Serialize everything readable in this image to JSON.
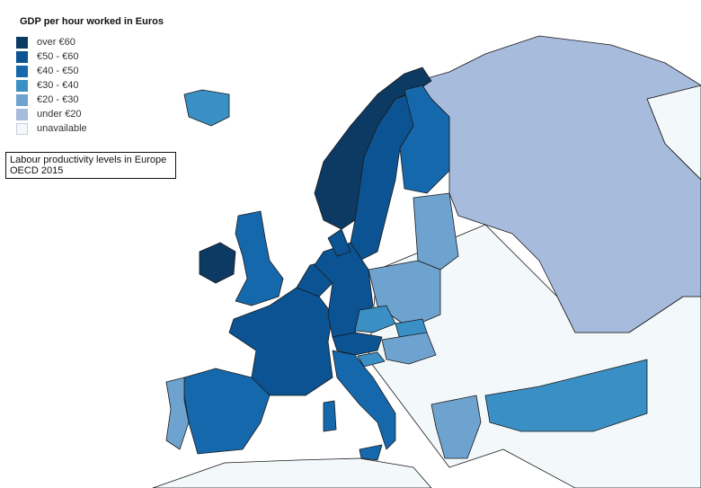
{
  "legend": {
    "title": "GDP per hour worked in Euros",
    "items": [
      {
        "label": "over €60",
        "color": "#0d3a63"
      },
      {
        "label": "€50 - €60",
        "color": "#0b5392"
      },
      {
        "label": "€40 - €50",
        "color": "#1668ad"
      },
      {
        "label": "€30 - €40",
        "color": "#3a8fc4"
      },
      {
        "label": "€20 - €30",
        "color": "#6fa3cf"
      },
      {
        "label": "under €20",
        "color": "#a7bbdc"
      },
      {
        "label": "unavailable",
        "color": "#f3f8fb"
      }
    ]
  },
  "caption": {
    "line1": "Labour productivity levels in Europe",
    "line2": "OECD 2015"
  },
  "regions": [
    {
      "name": "norway",
      "category": 0
    },
    {
      "name": "ireland",
      "category": 0
    },
    {
      "name": "sweden",
      "category": 1
    },
    {
      "name": "denmark",
      "category": 1
    },
    {
      "name": "germany",
      "category": 1
    },
    {
      "name": "france",
      "category": 1
    },
    {
      "name": "benelux",
      "category": 1
    },
    {
      "name": "austria",
      "category": 1
    },
    {
      "name": "united-kingdom",
      "category": 2
    },
    {
      "name": "finland",
      "category": 2
    },
    {
      "name": "spain",
      "category": 2
    },
    {
      "name": "italy",
      "category": 2
    },
    {
      "name": "iceland",
      "category": 3
    },
    {
      "name": "czech-republic",
      "category": 3
    },
    {
      "name": "slovakia",
      "category": 3
    },
    {
      "name": "slovenia",
      "category": 3
    },
    {
      "name": "turkey",
      "category": 3
    },
    {
      "name": "portugal",
      "category": 4
    },
    {
      "name": "poland",
      "category": 4
    },
    {
      "name": "baltics",
      "category": 4
    },
    {
      "name": "hungary",
      "category": 4
    },
    {
      "name": "greece",
      "category": 4
    },
    {
      "name": "russia",
      "category": 5
    }
  ]
}
